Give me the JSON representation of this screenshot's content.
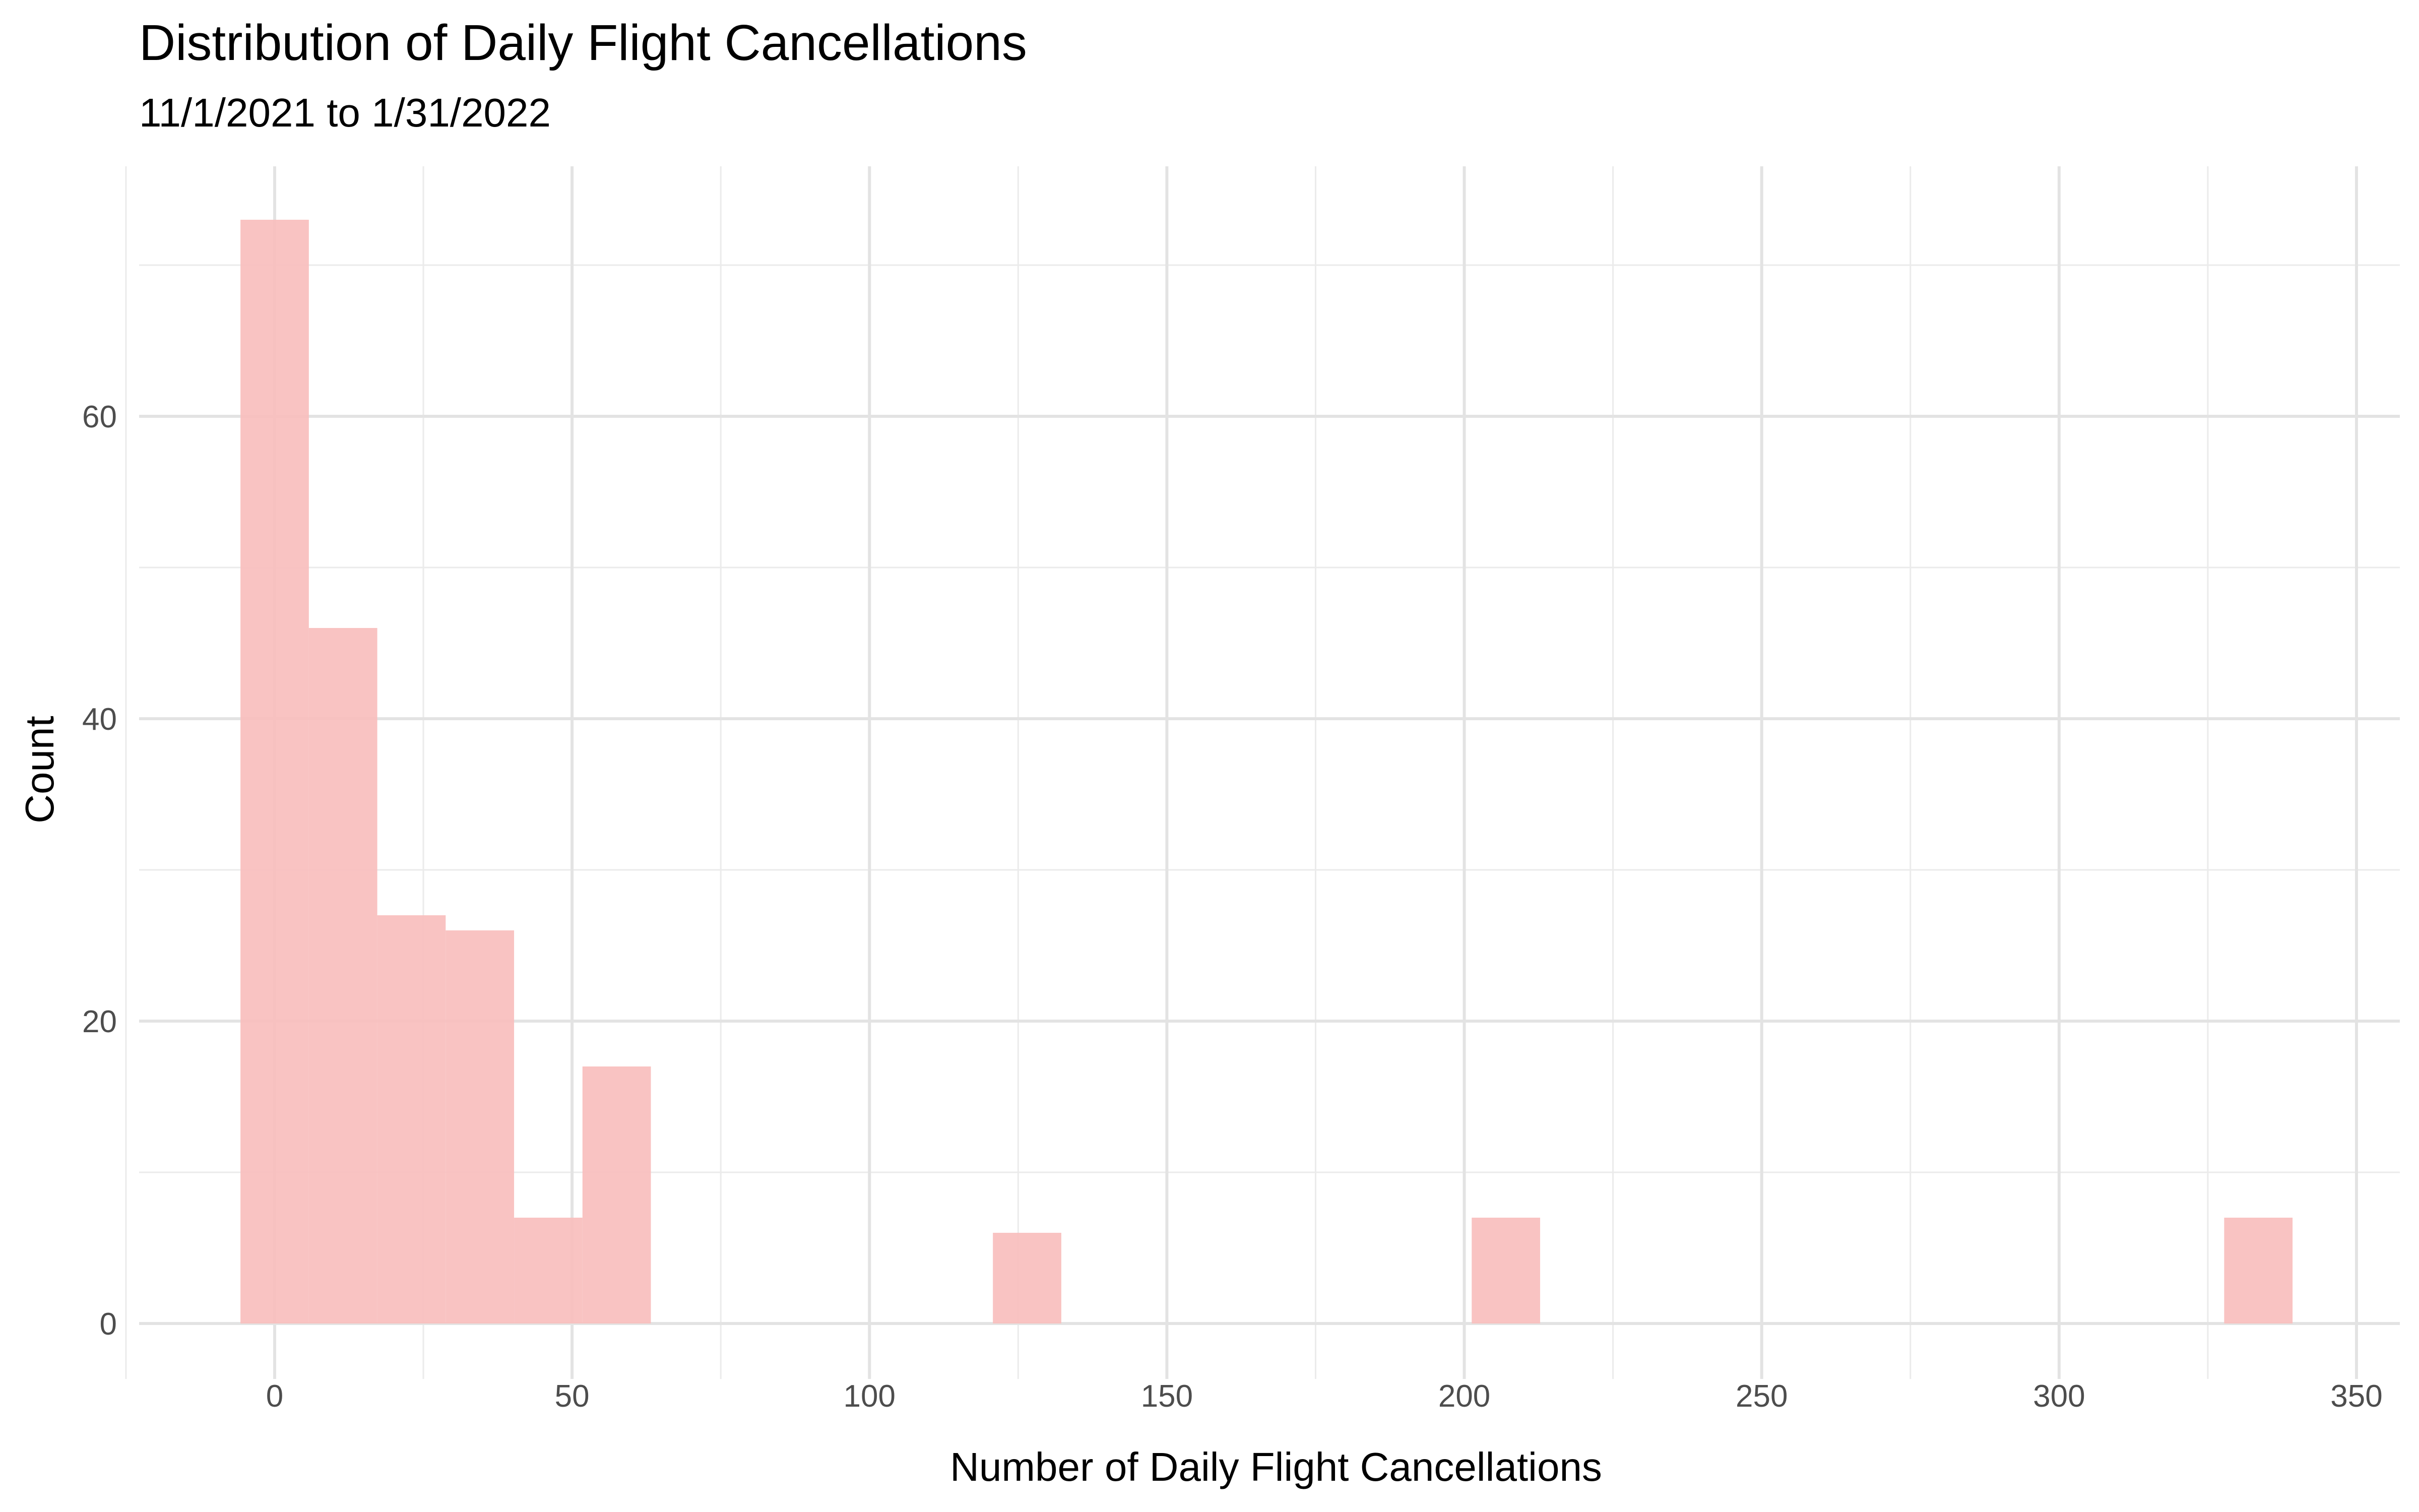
{
  "chart_data": {
    "type": "bar",
    "subtype": "histogram",
    "title": "Distribution of Daily Flight Cancellations",
    "subtitle": "11/1/2021 to 1/31/2022",
    "xlabel": "Number of Daily Flight Cancellations",
    "ylabel": "Count",
    "xlim": [
      -22.5,
      350
    ],
    "ylim": [
      0,
      74
    ],
    "x_ticks": [
      0,
      50,
      100,
      150,
      200,
      250,
      300,
      350
    ],
    "y_ticks": [
      0,
      20,
      40,
      60
    ],
    "grid": true,
    "bar_color": "#F8BEBD",
    "bins": [
      {
        "start": -5.75,
        "end": 5.75,
        "count": 73
      },
      {
        "start": 5.75,
        "end": 17.25,
        "count": 46
      },
      {
        "start": 17.25,
        "end": 28.75,
        "count": 27
      },
      {
        "start": 28.75,
        "end": 40.25,
        "count": 26
      },
      {
        "start": 40.25,
        "end": 51.75,
        "count": 7
      },
      {
        "start": 51.75,
        "end": 63.25,
        "count": 17
      },
      {
        "start": 120.75,
        "end": 132.25,
        "count": 6
      },
      {
        "start": 201.25,
        "end": 212.75,
        "count": 7
      },
      {
        "start": 327.75,
        "end": 339.25,
        "count": 7
      }
    ]
  }
}
